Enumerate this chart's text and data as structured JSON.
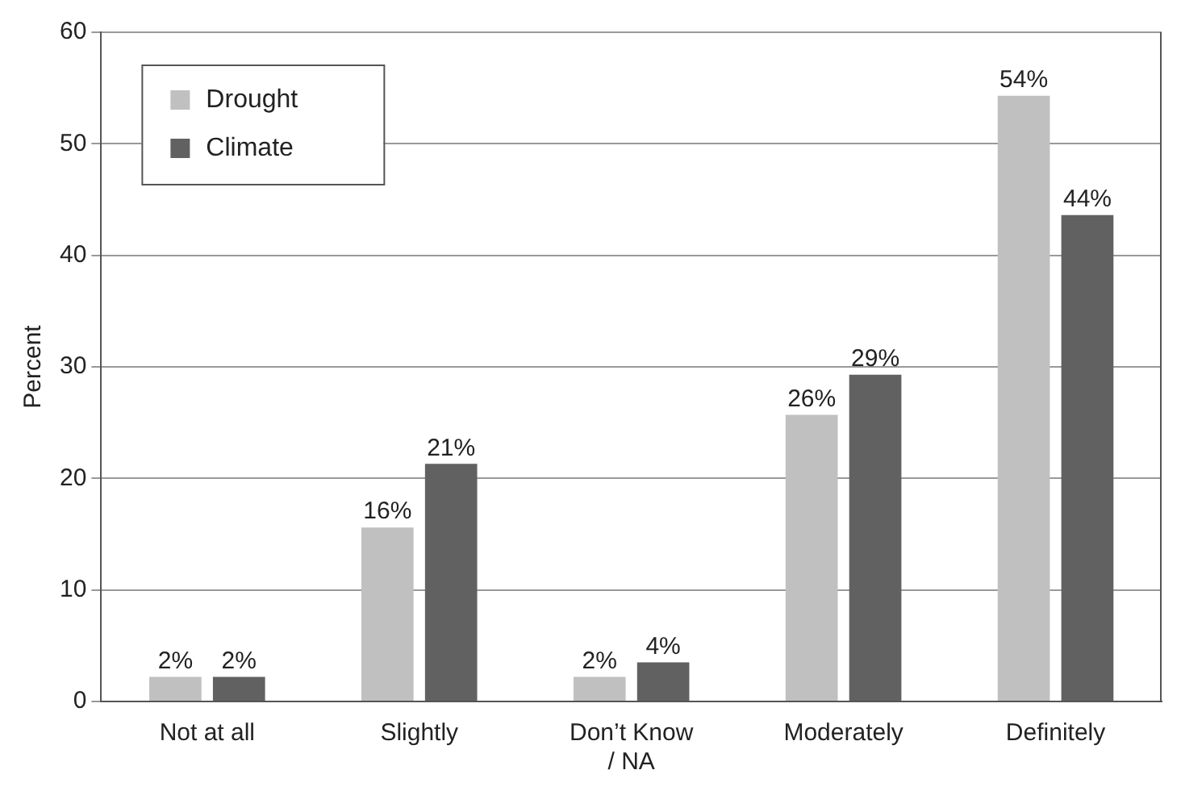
{
  "chart_data": {
    "type": "bar",
    "ylabel": "Percent",
    "categories": [
      "Not at all",
      "Slightly",
      "Don’t Know / NA",
      "Moderately",
      "Definitely"
    ],
    "series": [
      {
        "name": "Drought",
        "color": "#c0c0c0",
        "values": [
          2.2,
          15.6,
          2.2,
          25.7,
          54.3
        ],
        "value_labels": [
          "2%",
          "16%",
          "2%",
          "26%",
          "54%"
        ]
      },
      {
        "name": "Climate",
        "color": "#616161",
        "values": [
          2.2,
          21.3,
          3.5,
          29.3,
          43.6
        ],
        "value_labels": [
          "2%",
          "21%",
          "4%",
          "29%",
          "44%"
        ]
      }
    ],
    "ylim": [
      0,
      60
    ],
    "yticks": [
      0,
      10,
      20,
      30,
      40,
      50,
      60
    ],
    "grid": "y",
    "legend": "top left"
  }
}
